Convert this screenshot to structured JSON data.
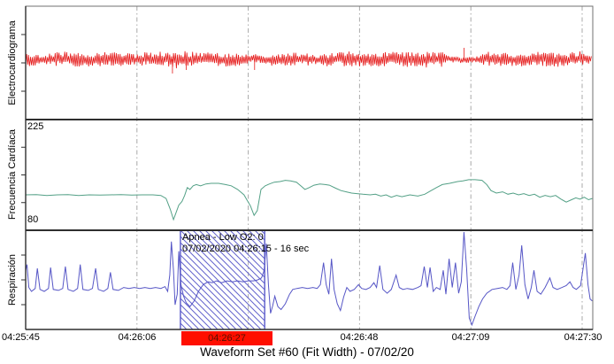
{
  "window": {
    "title": "Waveform Set #60 (Fit Width) - 07/02/20"
  },
  "colors": {
    "ecg": "#e51919",
    "heart_rate": "#53a086",
    "respiration": "#5656c6",
    "hatch": "#6363cd",
    "event_band": "#ff0f00",
    "event_band_label": "#571000",
    "grid": "#a9a9a9",
    "frame": "#707070",
    "axis": "#2f2f2f"
  },
  "panels": [
    {
      "id": "ecg",
      "label": "Electrocardiograma"
    },
    {
      "id": "hr",
      "label": "Frecuencia Cardíaca",
      "scale_max": "225",
      "scale_min": "80"
    },
    {
      "id": "resp",
      "label": "Respiración"
    }
  ],
  "x_axis": {
    "labels": [
      "04:25:45",
      "04:26:06",
      "04:26:27",
      "04:26:48",
      "04:27:09",
      "04:27:30"
    ],
    "tick_interval_sec": 21,
    "span_sec": 105
  },
  "event": {
    "line1": "Apnea - Low O2: 0",
    "line2": "07/02/2020 04:26:15 - 16 sec",
    "hatch_start_sec": 29.2,
    "hatch_end_sec": 45.1,
    "band_start_sec": 29.4,
    "band_end_sec": 46.6
  },
  "chart_data": [
    {
      "type": "line",
      "title": "Electrocardiograma",
      "x_unit": "seconds from 04:25:45",
      "x_range": [
        0,
        106.9
      ],
      "style": "dense-noise-band",
      "seed": 77421,
      "base": 67,
      "noise_envelope": [
        [
          0,
          8
        ],
        [
          26,
          8
        ],
        [
          27,
          10
        ],
        [
          31,
          10
        ],
        [
          32,
          7.5
        ],
        [
          42,
          7.5
        ],
        [
          42.5,
          6
        ],
        [
          45,
          6
        ],
        [
          45.5,
          7.5
        ],
        [
          57,
          7.5
        ],
        [
          58,
          8.5
        ],
        [
          70,
          8.5
        ],
        [
          71,
          9
        ],
        [
          78.5,
          9
        ],
        [
          79.5,
          3.5
        ],
        [
          82,
          3.5
        ],
        [
          85.5,
          3.5
        ],
        [
          86.5,
          8
        ],
        [
          95,
          8
        ],
        [
          95.5,
          8.5
        ],
        [
          106.9,
          8.5
        ]
      ],
      "spikes": [
        [
          27.7,
          16
        ],
        [
          30.3,
          12
        ],
        [
          43.2,
          12
        ],
        [
          82.7,
          -13
        ]
      ]
    },
    {
      "type": "line",
      "title": "Frecuencia Cardiaca",
      "x_unit": "seconds from 04:25:45",
      "ylabelled": [
        225,
        80
      ],
      "ylim": [
        80,
        225
      ],
      "points": [
        [
          0,
          121
        ],
        [
          2,
          121.5
        ],
        [
          4,
          120
        ],
        [
          6,
          121
        ],
        [
          8,
          121.5
        ],
        [
          10,
          120
        ],
        [
          12,
          121
        ],
        [
          14,
          120.5
        ],
        [
          16,
          121
        ],
        [
          18,
          121.5
        ],
        [
          20,
          120.5
        ],
        [
          22,
          121
        ],
        [
          24,
          121
        ],
        [
          25.5,
          120
        ],
        [
          26.5,
          115
        ],
        [
          27.3,
          97
        ],
        [
          27.9,
          80
        ],
        [
          28.4,
          92
        ],
        [
          28.9,
          104
        ],
        [
          29.5,
          110
        ],
        [
          30,
          120
        ],
        [
          30.5,
          133
        ],
        [
          31,
          130
        ],
        [
          31.6,
          136
        ],
        [
          32.2,
          138
        ],
        [
          33,
          136
        ],
        [
          34,
          139
        ],
        [
          35,
          140
        ],
        [
          36.4,
          140
        ],
        [
          37.7,
          138
        ],
        [
          38.8,
          136
        ],
        [
          40,
          130
        ],
        [
          41.2,
          121
        ],
        [
          41.8,
          112
        ],
        [
          42.4,
          103
        ],
        [
          43.1,
          87
        ],
        [
          43.7,
          95
        ],
        [
          44.4,
          130
        ],
        [
          45.2,
          136
        ],
        [
          46,
          139
        ],
        [
          46.9,
          142
        ],
        [
          48,
          143
        ],
        [
          49,
          145
        ],
        [
          50,
          144
        ],
        [
          51.1,
          142
        ],
        [
          51.9,
          136
        ],
        [
          52.7,
          130
        ],
        [
          53.5,
          133
        ],
        [
          54.4,
          137
        ],
        [
          55.5,
          139
        ],
        [
          56.5,
          138
        ],
        [
          57.3,
          137
        ],
        [
          58.5,
          132
        ],
        [
          59.5,
          128
        ],
        [
          60.5,
          126
        ],
        [
          61.5,
          124
        ],
        [
          62.5,
          123
        ],
        [
          63.6,
          122
        ],
        [
          65,
          121
        ],
        [
          66,
          122
        ],
        [
          67,
          119
        ],
        [
          68,
          121
        ],
        [
          69,
          117
        ],
        [
          70,
          120
        ],
        [
          71,
          118
        ],
        [
          72.5,
          121
        ],
        [
          74,
          119
        ],
        [
          75.3,
          122
        ],
        [
          76.5,
          128
        ],
        [
          77.5,
          133
        ],
        [
          78.6,
          138
        ],
        [
          80,
          140
        ],
        [
          81.5,
          143
        ],
        [
          82.5,
          144
        ],
        [
          83.6,
          146
        ],
        [
          84.8,
          146
        ],
        [
          86.1,
          145
        ],
        [
          87,
          138
        ],
        [
          87.8,
          128
        ],
        [
          88.8,
          124
        ],
        [
          90,
          126
        ],
        [
          91,
          122
        ],
        [
          92,
          124
        ],
        [
          93,
          121
        ],
        [
          94,
          123
        ],
        [
          95,
          120
        ],
        [
          96,
          122
        ],
        [
          97,
          117
        ],
        [
          98,
          120
        ],
        [
          99,
          118
        ],
        [
          100,
          120
        ],
        [
          101,
          114
        ],
        [
          102,
          109
        ],
        [
          103,
          113
        ],
        [
          103.8,
          116
        ],
        [
          104.6,
          114
        ],
        [
          105.4,
          117
        ],
        [
          106.2,
          113
        ],
        [
          106.9,
          115
        ]
      ]
    },
    {
      "type": "line",
      "title": "Respiración",
      "x_unit": "seconds from 04:25:45",
      "y_unit": "normalized 0-1 (no scale shown)",
      "points": [
        [
          0,
          0.6
        ],
        [
          0.25,
          0.66
        ],
        [
          0.6,
          0.42
        ],
        [
          1.1,
          0.38
        ],
        [
          1.8,
          0.41
        ],
        [
          2.2,
          0.62
        ],
        [
          2.7,
          0.4
        ],
        [
          3.5,
          0.38
        ],
        [
          4.3,
          0.41
        ],
        [
          4.7,
          0.63
        ],
        [
          5.2,
          0.4
        ],
        [
          6.2,
          0.39
        ],
        [
          7,
          0.41
        ],
        [
          7.5,
          0.64
        ],
        [
          8,
          0.4
        ],
        [
          9,
          0.38
        ],
        [
          9.8,
          0.41
        ],
        [
          10.3,
          0.66
        ],
        [
          10.8,
          0.4
        ],
        [
          11.8,
          0.39
        ],
        [
          12.6,
          0.41
        ],
        [
          13.2,
          0.62
        ],
        [
          13.7,
          0.4
        ],
        [
          14.7,
          0.38
        ],
        [
          15.5,
          0.41
        ],
        [
          16,
          0.58
        ],
        [
          16.5,
          0.4
        ],
        [
          17.5,
          0.39
        ],
        [
          18.5,
          0.42
        ],
        [
          19.5,
          0.41
        ],
        [
          20.5,
          0.42
        ],
        [
          21.5,
          0.41
        ],
        [
          22.5,
          0.42
        ],
        [
          23.5,
          0.41
        ],
        [
          24.5,
          0.42
        ],
        [
          25.5,
          0.41
        ],
        [
          26.3,
          0.43
        ],
        [
          26.8,
          0.38
        ],
        [
          27.2,
          0.55
        ],
        [
          27.5,
          0.9
        ],
        [
          27.9,
          0.6
        ],
        [
          28.2,
          0.24
        ],
        [
          28.6,
          0.35
        ],
        [
          28.9,
          0.8
        ],
        [
          29.3,
          0.45
        ],
        [
          29.8,
          0.33
        ],
        [
          30.3,
          0.26
        ],
        [
          31,
          0.22
        ],
        [
          31.8,
          0.28
        ],
        [
          32.6,
          0.38
        ],
        [
          33.5,
          0.45
        ],
        [
          34.4,
          0.48
        ],
        [
          35.2,
          0.47
        ],
        [
          36,
          0.49
        ],
        [
          37,
          0.47
        ],
        [
          38,
          0.49
        ],
        [
          39,
          0.48
        ],
        [
          40,
          0.49
        ],
        [
          41,
          0.48
        ],
        [
          42,
          0.49
        ],
        [
          43,
          0.49
        ],
        [
          43.8,
          0.5
        ],
        [
          44.5,
          0.52
        ],
        [
          45,
          0.6
        ],
        [
          45.4,
          0.88
        ],
        [
          45.8,
          0.45
        ],
        [
          46.2,
          0.15
        ],
        [
          46.6,
          0.23
        ],
        [
          47,
          0.33
        ],
        [
          47.6,
          0.22
        ],
        [
          48.2,
          0.19
        ],
        [
          49,
          0.25
        ],
        [
          49.8,
          0.35
        ],
        [
          50.4,
          0.4
        ],
        [
          51.2,
          0.41
        ],
        [
          52.2,
          0.42
        ],
        [
          53.2,
          0.41
        ],
        [
          54.2,
          0.42
        ],
        [
          55,
          0.41
        ],
        [
          55.6,
          0.45
        ],
        [
          56.2,
          0.68
        ],
        [
          56.7,
          0.45
        ],
        [
          57.2,
          0.35
        ],
        [
          57.7,
          0.72
        ],
        [
          58.2,
          0.4
        ],
        [
          58.8,
          0.25
        ],
        [
          59.4,
          0.18
        ],
        [
          60,
          0.32
        ],
        [
          60.6,
          0.42
        ],
        [
          61.2,
          0.38
        ],
        [
          62,
          0.4
        ],
        [
          62.8,
          0.45
        ],
        [
          63.4,
          0.41
        ],
        [
          64.2,
          0.4
        ],
        [
          65,
          0.42
        ],
        [
          65.7,
          0.47
        ],
        [
          66.2,
          0.42
        ],
        [
          66.8,
          0.65
        ],
        [
          67.4,
          0.4
        ],
        [
          68.2,
          0.36
        ],
        [
          69,
          0.4
        ],
        [
          69.9,
          0.55
        ],
        [
          70.5,
          0.42
        ],
        [
          71.2,
          0.4
        ],
        [
          72,
          0.41
        ],
        [
          73,
          0.4
        ],
        [
          74,
          0.42
        ],
        [
          74.6,
          0.44
        ],
        [
          75.2,
          0.64
        ],
        [
          75.8,
          0.42
        ],
        [
          76.3,
          0.63
        ],
        [
          76.9,
          0.38
        ],
        [
          77.5,
          0.42
        ],
        [
          78.2,
          0.4
        ],
        [
          78.8,
          0.6
        ],
        [
          79.3,
          0.35
        ],
        [
          79.9,
          0.72
        ],
        [
          80.5,
          0.42
        ],
        [
          81.1,
          0.68
        ],
        [
          81.7,
          0.36
        ],
        [
          82.2,
          0.48
        ],
        [
          82.7,
          1
        ],
        [
          83.2,
          0.62
        ],
        [
          83.7,
          0.1
        ],
        [
          84.2,
          0.03
        ],
        [
          84.8,
          0.12
        ],
        [
          85.5,
          0.22
        ],
        [
          86.2,
          0.3
        ],
        [
          87,
          0.36
        ],
        [
          88,
          0.4
        ],
        [
          89,
          0.41
        ],
        [
          90,
          0.42
        ],
        [
          90.8,
          0.4
        ],
        [
          91.4,
          0.44
        ],
        [
          91.9,
          0.68
        ],
        [
          92.5,
          0.4
        ],
        [
          93.1,
          0.55
        ],
        [
          93.6,
          0.86
        ],
        [
          94.2,
          0.45
        ],
        [
          94.8,
          0.3
        ],
        [
          95.4,
          0.42
        ],
        [
          95.9,
          0.6
        ],
        [
          96.5,
          0.38
        ],
        [
          97.2,
          0.35
        ],
        [
          98,
          0.42
        ],
        [
          98.9,
          0.52
        ],
        [
          99.5,
          0.42
        ],
        [
          100.3,
          0.4
        ],
        [
          101.2,
          0.42
        ],
        [
          102,
          0.44
        ],
        [
          102.7,
          0.48
        ],
        [
          103.3,
          0.42
        ],
        [
          103.9,
          0.4
        ],
        [
          104.7,
          0.44
        ],
        [
          105.6,
          0.78
        ],
        [
          106.1,
          0.45
        ],
        [
          106.5,
          0.3
        ],
        [
          106.9,
          0.28
        ]
      ]
    }
  ]
}
